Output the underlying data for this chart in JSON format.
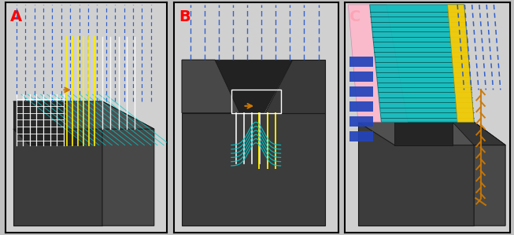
{
  "figure_width": 6.53,
  "figure_height": 2.99,
  "dpi": 100,
  "background_color": "#c0c0c0",
  "panel_bg": "#d0d0d0",
  "panel_border_color": "#000000",
  "panels": [
    "A",
    "B",
    "C"
  ],
  "label_colors": {
    "A": "#ff0000",
    "B": "#ff0000",
    "C": "#dd0000"
  },
  "dark_gray": "#3c3c3c",
  "mid_gray": "#505050",
  "side_gray": "#484848",
  "blue_dashed": "#2255cc",
  "yellow_line": "#ffee00",
  "white_line": "#ffffff",
  "cyan_line": "#00cccc",
  "orange_mark": "#cc7700",
  "pink_fill": "#ffb8cc",
  "teal_fill": "#00bbbb",
  "gold_fill": "#ffcc00",
  "blue_rect": "#2244bb"
}
